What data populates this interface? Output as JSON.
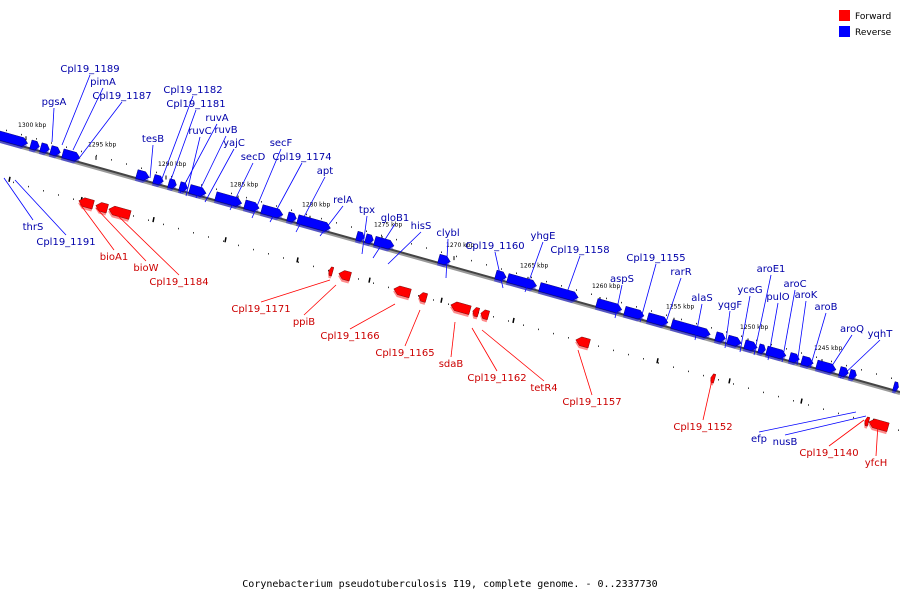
{
  "caption": "Corynebacterium pseudotuberculosis I19, complete genome. - 0..2337730",
  "legend": [
    {
      "label": "Forward",
      "color": "#ff0000"
    },
    {
      "label": "Reverse",
      "color": "#0000ff"
    }
  ],
  "colors": {
    "forward": "#ff0000",
    "reverse": "#0000ff",
    "forward_label": "#cc0000",
    "reverse_label": "#0000aa"
  },
  "scale_labels": [
    "1300 kbp",
    "1295 kbp",
    "1290 kbp",
    "1285 kbp",
    "1280 kbp",
    "1275 kbp",
    "1270 kbp",
    "1265 kbp",
    "1260 kbp",
    "1255 kbp",
    "1250 kbp",
    "1245 kbp"
  ],
  "reverse_labels": [
    "Cpl19_1189",
    "pimA",
    "pgsA",
    "Cpl19_1187",
    "thrS",
    "Cpl19_1191",
    "tesB",
    "Cpl19_1182",
    "Cpl19_1181",
    "ruvA",
    "ruvC",
    "ruvB",
    "yajC",
    "secD",
    "secF",
    "Cpl19_1174",
    "apt",
    "relA",
    "tpx",
    "gloB1",
    "hisS",
    "clybl",
    "Cpl19_1160",
    "yhgE",
    "Cpl19_1158",
    "aspS",
    "Cpl19_1155",
    "rarR",
    "alaS",
    "yqgF",
    "yceG",
    "aroE1",
    "pulO",
    "aroC",
    "aroK",
    "aroB",
    "aroQ",
    "yqhT",
    "efp",
    "nusB"
  ],
  "forward_labels": [
    "bioA1",
    "bioW",
    "Cpl19_1184",
    "Cpl19_1171",
    "ppiB",
    "Cpl19_1166",
    "Cpl19_1165",
    "sdaB",
    "Cpl19_1162",
    "tetR4",
    "Cpl19_1157",
    "Cpl19_1152",
    "Cpl19_1140",
    "yfcH"
  ]
}
